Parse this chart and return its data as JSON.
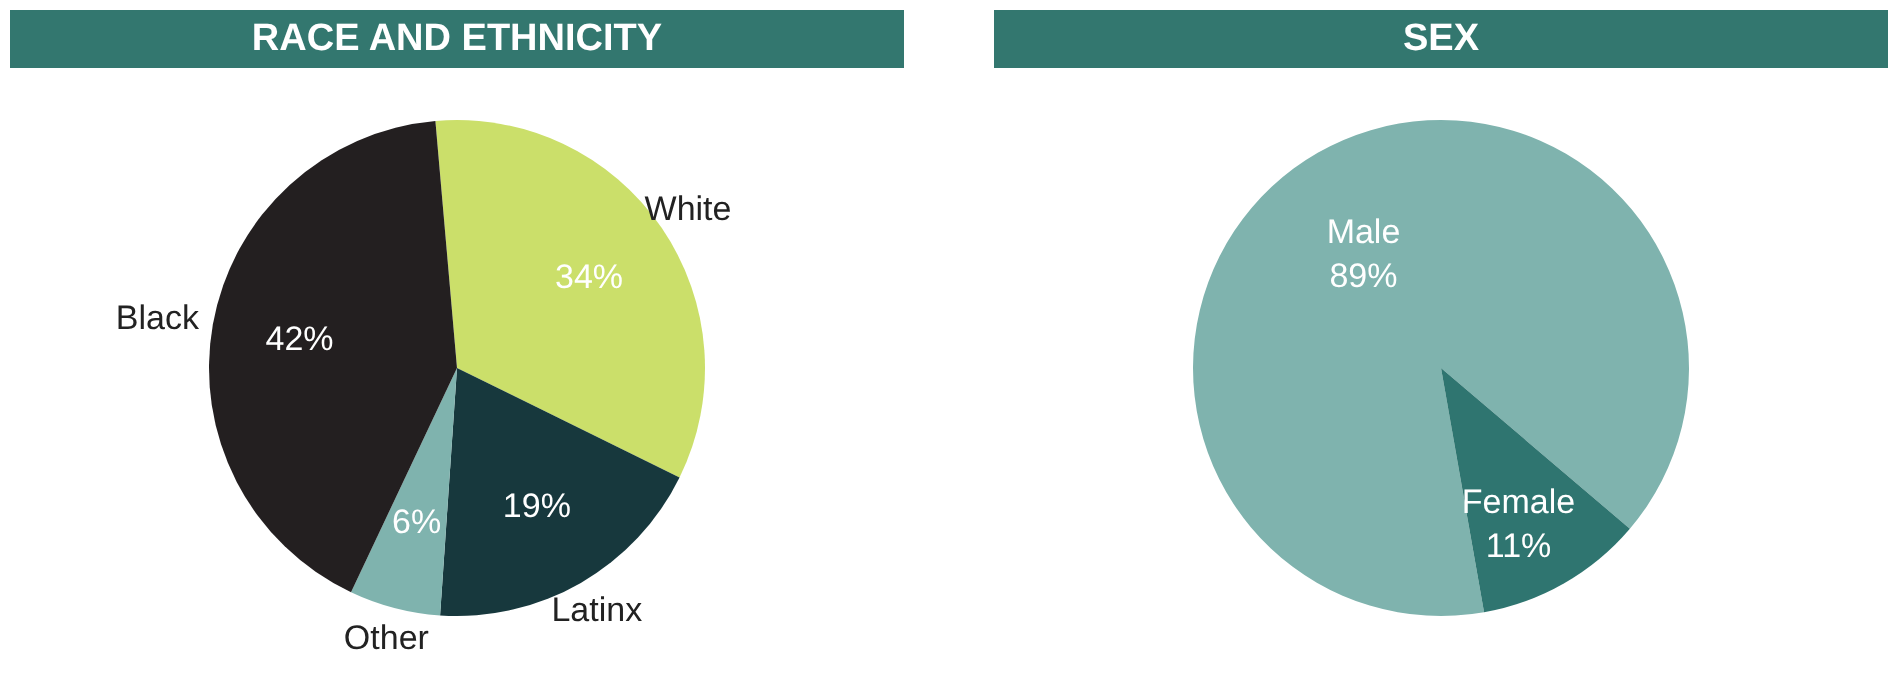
{
  "chart_data": [
    {
      "type": "pie",
      "title": "RACE AND ETHNICITY",
      "categories": [
        "White",
        "Latinx",
        "Other",
        "Black"
      ],
      "values": [
        34,
        19,
        6,
        42
      ],
      "colors": [
        "#cbdf6a",
        "#17383d",
        "#7fb3ae",
        "#231f20"
      ],
      "value_labels": [
        "34%",
        "19%",
        "6%",
        "42%"
      ]
    },
    {
      "type": "pie",
      "title": "SEX",
      "categories": [
        "Male",
        "Female"
      ],
      "values": [
        89,
        11
      ],
      "colors": [
        "#7fb3ae",
        "#2f7570"
      ],
      "value_labels": [
        "89%",
        "11%"
      ]
    }
  ]
}
